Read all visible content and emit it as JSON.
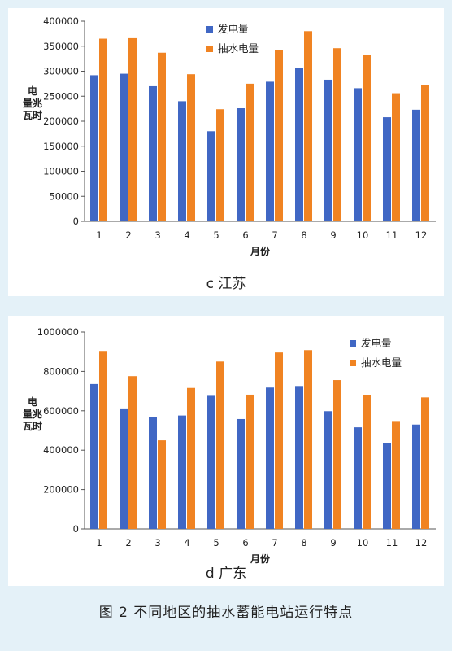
{
  "caption": "图 2   不同地区的抽水蓄能电站运行特点",
  "colors": {
    "generation": "#4067c4",
    "pumping": "#f08322",
    "panel": "#ffffff",
    "background": "#e4f1f8"
  },
  "chart_data": [
    {
      "type": "bar",
      "title": "c 江苏",
      "xlabel": "月份",
      "ylabel": "电量兆瓦时",
      "categories": [
        "1",
        "2",
        "3",
        "4",
        "5",
        "6",
        "7",
        "8",
        "9",
        "10",
        "11",
        "12"
      ],
      "ylim": [
        0,
        400000
      ],
      "yticks": [
        "0",
        "50000",
        "100000",
        "150000",
        "200000",
        "250000",
        "300000",
        "350000",
        "400000"
      ],
      "legend_position": "top-center",
      "grid": false,
      "series": [
        {
          "name": "发电量",
          "color": "#4067c4",
          "values": [
            292000,
            295000,
            270000,
            240000,
            180000,
            226000,
            279000,
            307000,
            283000,
            266000,
            208000,
            223000
          ]
        },
        {
          "name": "抽水电量",
          "color": "#f08322",
          "values": [
            365000,
            366000,
            337000,
            294000,
            224000,
            275000,
            343000,
            380000,
            346000,
            332000,
            256000,
            273000
          ]
        }
      ]
    },
    {
      "type": "bar",
      "title": "d 广东",
      "xlabel": "月份",
      "ylabel": "电量兆瓦时",
      "categories": [
        "1",
        "2",
        "3",
        "4",
        "5",
        "6",
        "7",
        "8",
        "9",
        "10",
        "11",
        "12"
      ],
      "ylim": [
        0,
        1000000
      ],
      "yticks": [
        "0",
        "200000",
        "400000",
        "600000",
        "800000",
        "1000000"
      ],
      "legend_position": "top-right",
      "grid": false,
      "series": [
        {
          "name": "发电量",
          "color": "#4067c4",
          "values": [
            736000,
            612000,
            567000,
            576000,
            676000,
            558000,
            718000,
            726000,
            598000,
            516000,
            436000,
            530000
          ]
        },
        {
          "name": "抽水电量",
          "color": "#f08322",
          "values": [
            904000,
            776000,
            450000,
            716000,
            850000,
            682000,
            896000,
            908000,
            756000,
            680000,
            548000,
            668000
          ]
        }
      ]
    }
  ]
}
